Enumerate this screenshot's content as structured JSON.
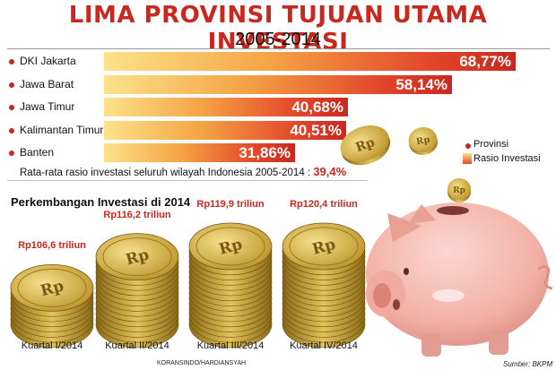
{
  "chart_data": [
    {
      "type": "bar",
      "title": "LIMA PROVINSI TUJUAN UTAMA INVESTASI",
      "subtitle": "2005-2014",
      "categories": [
        "DKI Jakarta",
        "Jawa Barat",
        "Jawa Timur",
        "Kalimantan Timur",
        "Banten"
      ],
      "values": [
        68.77,
        58.14,
        40.68,
        40.51,
        31.86
      ],
      "value_labels": [
        "68,77%",
        "58,14%",
        "40,68%",
        "40,51%",
        "31,86%"
      ],
      "orientation": "horizontal",
      "xlim": [
        0,
        68.77
      ],
      "annotation": "Rata-rata rasio investasi seluruh wilayah Indonesia 2005-2014 :",
      "annotation_value": "39,4%",
      "legend": {
        "items": [
          "Provinsi",
          "Rasio Investasi"
        ],
        "placement": "right"
      }
    },
    {
      "type": "bar",
      "title": "Perkembangan Investasi di 2014",
      "categories": [
        "Kuartal I/2014",
        "Kuartal II/2014",
        "Kuartal III/2014",
        "Kuartal IV/2014"
      ],
      "values": [
        106.6,
        116.2,
        119.9,
        120.4
      ],
      "value_labels": [
        "Rp106,6 triliun",
        "Rp116,2 triliun",
        "Rp119,9 triliun",
        "Rp120,4 triliun"
      ],
      "unit": "triliun"
    }
  ],
  "credit": "KORANSINDO/HARDIANSYAH",
  "source": "Sumber: BKPM",
  "coin_symbol": "Rp",
  "colors": {
    "accent": "#c9281f",
    "coin": "#c9a43a",
    "pig": "#f2b7ae"
  }
}
